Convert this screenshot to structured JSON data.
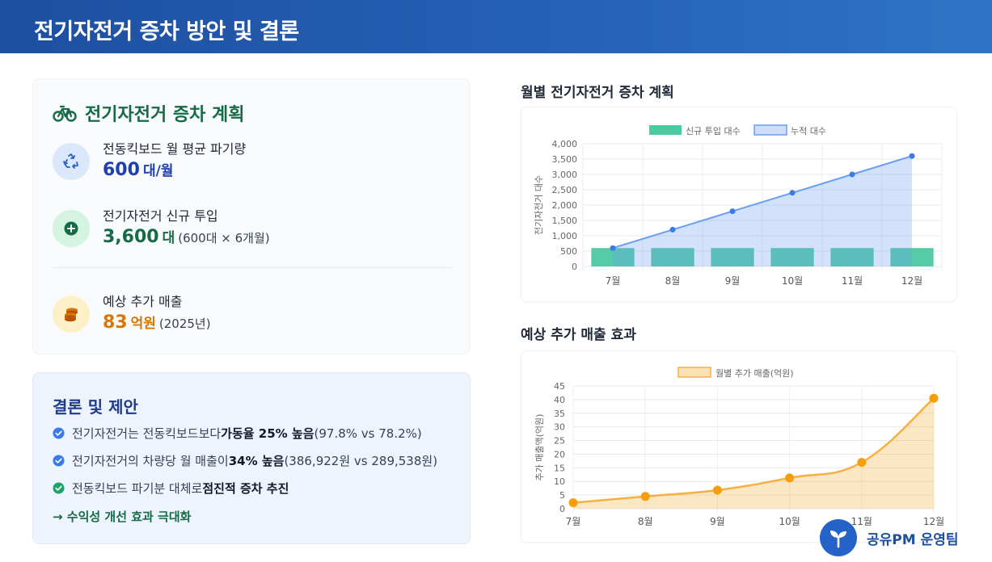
{
  "header": {
    "title": "전기자전거 증차 방안 및 결론"
  },
  "plan": {
    "title": "전기자전거 증차 계획",
    "items": [
      {
        "label": "전동킥보드 월 평균 파기량",
        "value": "600",
        "unit": "대/월",
        "note": "",
        "icon": "recycle-icon",
        "color": "#1e40af",
        "bg": "#dbe8fb"
      },
      {
        "label": "전기자전거 신규 투입",
        "value": "3,600",
        "unit": "대",
        "note": "(600대 × 6개월)",
        "icon": "plus-circle-icon",
        "color": "#166a45",
        "bg": "#d4f3e1"
      },
      {
        "label": "예상 추가 매출",
        "value": "83",
        "unit": "억원",
        "note": "(2025년)",
        "icon": "coins-icon",
        "color": "#d97706",
        "bg": "#fdf0c7"
      }
    ]
  },
  "conclusion": {
    "title": "결론 및 제안",
    "rows": [
      {
        "pre": "전기자전거는 전동킥보드보다 ",
        "bold": "가동율 25% 높음",
        "post": " (97.8% vs 78.2%)"
      },
      {
        "pre": "전기자전거의 차량당 월 매출이 ",
        "bold": "34% 높음",
        "post": " (386,922원 vs 289,538원)"
      },
      {
        "pre": "전동킥보드 파기분 대체로 ",
        "bold": "점진적 증차 추진",
        "post": ""
      }
    ],
    "arrow_text": "→ 수익성 개선 효과 극대화"
  },
  "chart1_title": "월별 전기자전거 증차 계획",
  "chart2_title": "예상 추가 매출 효과",
  "chart_data": [
    {
      "type": "bar",
      "categories": [
        "7월",
        "8월",
        "9월",
        "10월",
        "11월",
        "12월"
      ],
      "series": [
        {
          "name": "신규 투입 대수",
          "type": "bar",
          "values": [
            600,
            600,
            600,
            600,
            600,
            600
          ],
          "color": "#4cc9a0"
        },
        {
          "name": "누적 대수",
          "type": "area",
          "values": [
            600,
            1200,
            1800,
            2400,
            3000,
            3600
          ],
          "color": "#6b9ef2"
        }
      ],
      "ylabel": "전기자전거 대수",
      "ylim": [
        0,
        4000
      ],
      "yticks": [
        "0",
        "500",
        "1,000",
        "1,500",
        "2,000",
        "2,500",
        "3,000",
        "3,500",
        "4,000"
      ],
      "legend": "top",
      "grid": true
    },
    {
      "type": "area",
      "categories": [
        "7월",
        "8월",
        "9월",
        "10월",
        "11월",
        "12월"
      ],
      "series": [
        {
          "name": "월별 추가 매출(억원)",
          "values": [
            2.2,
            4.5,
            6.8,
            11.3,
            17,
            40.5
          ],
          "color": "#f5b040"
        }
      ],
      "ylabel": "추가 매출액(억원)",
      "ylim": [
        0,
        45
      ],
      "yticks": [
        "0",
        "5",
        "10",
        "15",
        "20",
        "25",
        "30",
        "35",
        "40",
        "45"
      ],
      "legend": "top",
      "grid": true
    }
  ],
  "team": {
    "name": "공유PM 운영팀"
  }
}
